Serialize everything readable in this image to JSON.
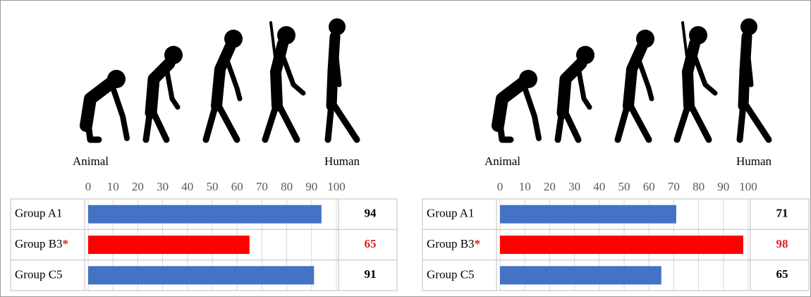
{
  "chart_data": [
    {
      "type": "bar",
      "orientation": "horizontal",
      "annotations": [
        "Animal",
        "Human"
      ],
      "categories": [
        "Group A1",
        "Group B3",
        "Group C5"
      ],
      "category_marks": [
        null,
        "*",
        null
      ],
      "values": [
        94,
        65,
        91
      ],
      "colors": [
        "#4472c4",
        "#ff0000",
        "#4472c4"
      ],
      "label_colors": [
        "#000000",
        "#e02020",
        "#000000"
      ],
      "mark_color": "#e02020",
      "xlim": [
        0,
        100
      ],
      "xticks": [
        0,
        10,
        20,
        30,
        40,
        50,
        60,
        70,
        80,
        90,
        100
      ],
      "grid": true
    },
    {
      "type": "bar",
      "orientation": "horizontal",
      "annotations": [
        "Animal",
        "Human"
      ],
      "categories": [
        "Group A1",
        "Group B3",
        "Group C5"
      ],
      "category_marks": [
        null,
        "*",
        null
      ],
      "values": [
        71,
        98,
        65
      ],
      "colors": [
        "#4472c4",
        "#ff0000",
        "#4472c4"
      ],
      "label_colors": [
        "#000000",
        "#e02020",
        "#000000"
      ],
      "mark_color": "#e02020",
      "xlim": [
        0,
        100
      ],
      "xticks": [
        0,
        10,
        20,
        30,
        40,
        50,
        60,
        70,
        80,
        90,
        100
      ],
      "grid": true
    }
  ]
}
